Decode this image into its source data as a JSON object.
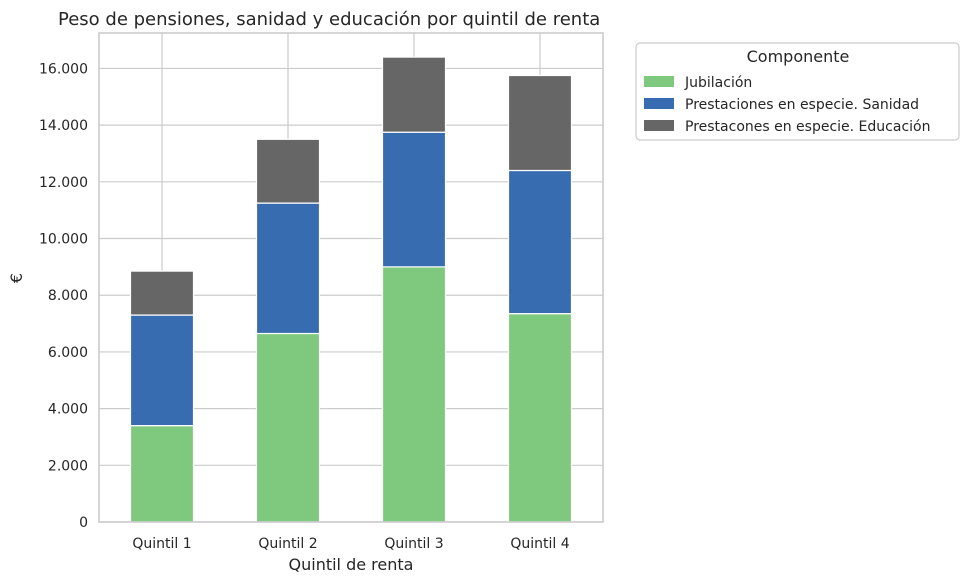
{
  "chart_data": {
    "type": "bar",
    "stacked": true,
    "title": "Peso de pensiones, sanidad y educación por quintil de renta",
    "xlabel": "Quintil de renta",
    "ylabel": "€",
    "categories": [
      "Quintil 1",
      "Quintil 2",
      "Quintil 3",
      "Quintil 4"
    ],
    "series": [
      {
        "name": "Jubilación",
        "color": "#7fc97f",
        "values": [
          3400,
          6650,
          9000,
          7350
        ]
      },
      {
        "name": "Prestaciones en especie. Sanidad",
        "color": "#386cb0",
        "values": [
          3900,
          4600,
          4750,
          5050
        ]
      },
      {
        "name": "Prestacones en especie. Educación",
        "color": "#666666",
        "values": [
          1550,
          2250,
          2650,
          3350
        ]
      }
    ],
    "yticks": [
      0,
      2000,
      4000,
      6000,
      8000,
      10000,
      12000,
      14000,
      16000
    ],
    "ytick_labels": [
      "0",
      "2.000",
      "4.000",
      "6.000",
      "8.000",
      "10.000",
      "12.000",
      "14.000",
      "16.000"
    ],
    "ylim": [
      0,
      17250
    ],
    "grid": true,
    "legend": {
      "title": "Componente",
      "placement": "outside-top-right"
    }
  }
}
